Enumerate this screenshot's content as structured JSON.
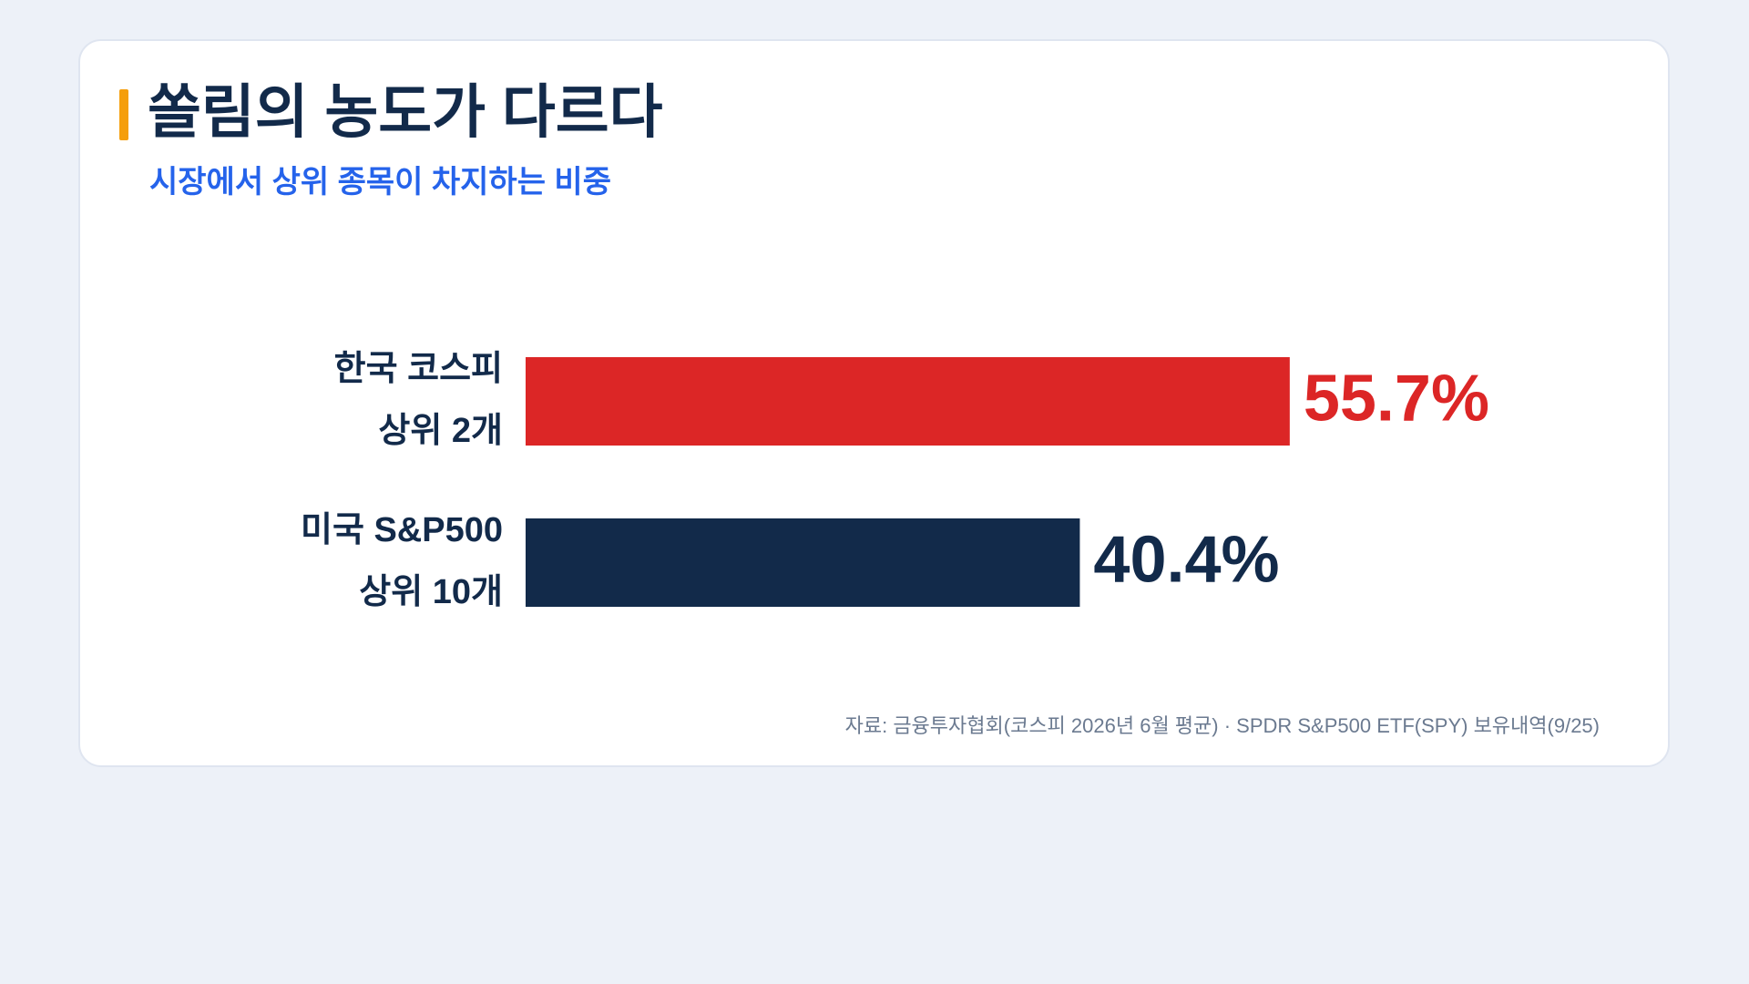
{
  "chart_data": {
    "type": "bar",
    "orientation": "horizontal",
    "title": "쏠림의 농도가 다르다",
    "subtitle": "시장에서 상위 종목이 차지하는 비중",
    "categories": [
      [
        "한국 코스피",
        "상위 2개"
      ],
      [
        "미국 S&P500",
        "상위 10개"
      ]
    ],
    "values": [
      55.7,
      40.4
    ],
    "value_labels": [
      "55.7%",
      "40.4%"
    ],
    "colors": [
      "#dc2626",
      "#122a4a"
    ],
    "source": "자료: 금융투자협회(코스피 2026년 6월 평균) · SPDR S&P500 ETF(SPY) 보유내역(9/25)"
  }
}
